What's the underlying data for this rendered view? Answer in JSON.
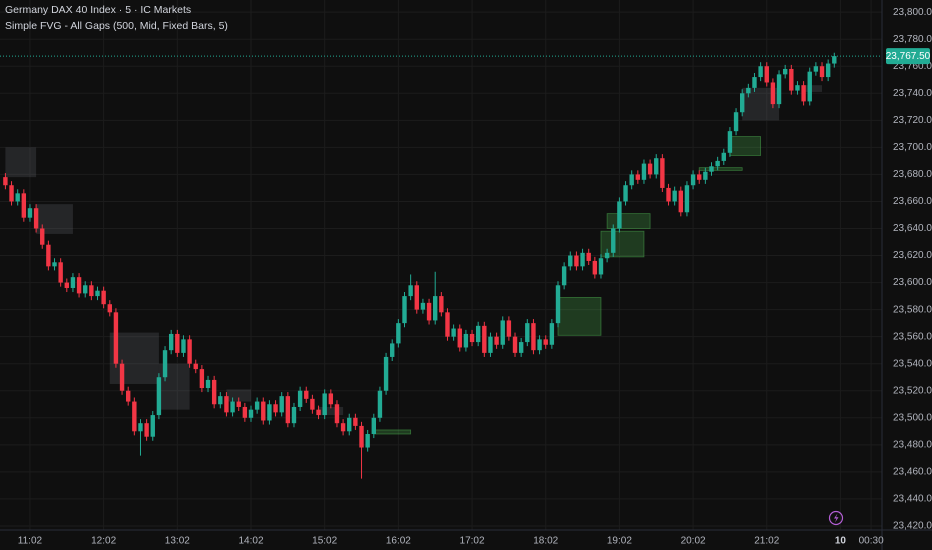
{
  "chart_data": {
    "type": "candlestick",
    "title": "Germany DAX 40 Index · 5 · IC Markets",
    "subtitle": "Simple FVG - All Gaps (500, Mid, Fixed Bars, 5)",
    "up_color": "#22ab94",
    "down_color": "#f23645",
    "grid": true,
    "ylim": [
      23417,
      23809
    ],
    "yticks": [
      {
        "value": 23420,
        "label": "23,420.00"
      },
      {
        "value": 23440,
        "label": "23,440.00"
      },
      {
        "value": 23460,
        "label": "23,460.00"
      },
      {
        "value": 23480,
        "label": "23,480.00"
      },
      {
        "value": 23500,
        "label": "23,500.00"
      },
      {
        "value": 23520,
        "label": "23,520.00"
      },
      {
        "value": 23540,
        "label": "23,540.00"
      },
      {
        "value": 23560,
        "label": "23,560.00"
      },
      {
        "value": 23580,
        "label": "23,580.00"
      },
      {
        "value": 23600,
        "label": "23,600.00"
      },
      {
        "value": 23620,
        "label": "23,620.00"
      },
      {
        "value": 23640,
        "label": "23,640.00"
      },
      {
        "value": 23660,
        "label": "23,660.00"
      },
      {
        "value": 23680,
        "label": "23,680.00"
      },
      {
        "value": 23700,
        "label": "23,700.00"
      },
      {
        "value": 23720,
        "label": "23,720.00"
      },
      {
        "value": 23740,
        "label": "23,740.00"
      },
      {
        "value": 23760,
        "label": "23,760.00"
      },
      {
        "value": 23780,
        "label": "23,780.00"
      },
      {
        "value": 23800,
        "label": "23,800.00"
      }
    ],
    "last_label": "23,767.50",
    "categories": [
      null,
      null,
      null,
      null,
      "11:02",
      null,
      null,
      null,
      null,
      null,
      null,
      null,
      null,
      null,
      null,
      null,
      "12:02",
      null,
      null,
      null,
      null,
      null,
      null,
      null,
      null,
      null,
      null,
      null,
      "13:02",
      null,
      null,
      null,
      null,
      null,
      null,
      null,
      null,
      null,
      null,
      null,
      "14:02",
      null,
      null,
      null,
      null,
      null,
      null,
      null,
      null,
      null,
      null,
      null,
      "15:02",
      null,
      null,
      null,
      null,
      null,
      null,
      null,
      null,
      null,
      null,
      null,
      "16:02",
      null,
      null,
      null,
      null,
      null,
      null,
      null,
      null,
      null,
      null,
      null,
      "17:02",
      null,
      null,
      null,
      null,
      null,
      null,
      null,
      null,
      null,
      null,
      null,
      "18:02",
      null,
      null,
      null,
      null,
      null,
      null,
      null,
      null,
      null,
      null,
      null,
      "19:02",
      null,
      null,
      null,
      null,
      null,
      null,
      null,
      null,
      null,
      null,
      null,
      "20:02",
      null,
      null,
      null,
      null,
      null,
      null,
      null,
      null,
      null,
      null,
      null,
      "21:02",
      null,
      null,
      null,
      null,
      null,
      null,
      null,
      null,
      null,
      null,
      null,
      "10",
      null,
      null,
      null,
      null,
      "00:30"
    ],
    "open": [
      23678,
      23672,
      23660,
      23666,
      23648,
      23655,
      23640,
      23628,
      23612,
      23615,
      23600,
      23596,
      23604,
      23592,
      23598,
      23590,
      23594,
      23584,
      23578,
      23540,
      23520,
      23512,
      23490,
      23496,
      23486,
      23502,
      23530,
      23550,
      23562,
      23548,
      23558,
      23540,
      23536,
      23522,
      23528,
      23510,
      23516,
      23504,
      23512,
      23508,
      23500,
      23506,
      23512,
      23498,
      23510,
      23504,
      23516,
      23496,
      23508,
      23520,
      23514,
      23506,
      23502,
      23518,
      23510,
      23496,
      23490,
      23500,
      23494,
      23478,
      23488,
      23500,
      23520,
      23545,
      23555,
      23570,
      23590,
      23598,
      23580,
      23585,
      23572,
      23590,
      23578,
      23560,
      23566,
      23552,
      23562,
      23556,
      23568,
      23548,
      23560,
      23554,
      23572,
      23560,
      23548,
      23556,
      23570,
      23550,
      23558,
      23554,
      23570,
      23598,
      23612,
      23620,
      23612,
      23622,
      23616,
      23606,
      23618,
      23622,
      23640,
      23660,
      23672,
      23680,
      23676,
      23688,
      23680,
      23692,
      23670,
      23660,
      23668,
      23652,
      23672,
      23680,
      23676,
      23682,
      23686,
      23690,
      23696,
      23712,
      23726,
      23740,
      23744,
      23752,
      23760,
      23748,
      23732,
      23754,
      23758,
      23742,
      23746,
      23734,
      23756,
      23760,
      23752,
      23762,
      null,
      null,
      null,
      null,
      null,
      null
    ],
    "high": [
      23681,
      23675,
      23669,
      23669,
      23658,
      23658,
      23643,
      23631,
      23618,
      23618,
      23603,
      23607,
      23607,
      23601,
      23601,
      23597,
      23597,
      23587,
      23581,
      23543,
      23523,
      23515,
      23499,
      23499,
      23505,
      23533,
      23553,
      23565,
      23565,
      23561,
      23561,
      23543,
      23539,
      23531,
      23531,
      23519,
      23519,
      23515,
      23515,
      23511,
      23509,
      23515,
      23515,
      23513,
      23513,
      23519,
      23519,
      23511,
      23523,
      23523,
      23517,
      23509,
      23521,
      23521,
      23513,
      23499,
      23503,
      23503,
      23497,
      23491,
      23503,
      23523,
      23548,
      23558,
      23573,
      23593,
      23606,
      23601,
      23588,
      23588,
      23608,
      23593,
      23581,
      23569,
      23569,
      23565,
      23565,
      23571,
      23571,
      23563,
      23563,
      23575,
      23575,
      23563,
      23559,
      23573,
      23573,
      23561,
      23561,
      23573,
      23601,
      23615,
      23623,
      23623,
      23625,
      23625,
      23619,
      23621,
      23625,
      23643,
      23663,
      23675,
      23683,
      23683,
      23691,
      23691,
      23695,
      23695,
      23673,
      23671,
      23671,
      23675,
      23683,
      23683,
      23685,
      23689,
      23693,
      23699,
      23715,
      23729,
      23743,
      23747,
      23755,
      23763,
      23763,
      23751,
      23757,
      23761,
      23761,
      23749,
      23749,
      23759,
      23763,
      23763,
      23765,
      23770,
      null,
      null,
      null,
      null,
      null,
      null
    ],
    "low": [
      23669,
      23657,
      23657,
      23645,
      23645,
      23637,
      23625,
      23609,
      23609,
      23597,
      23593,
      23593,
      23589,
      23589,
      23587,
      23587,
      23581,
      23575,
      23537,
      23517,
      23509,
      23487,
      23472,
      23483,
      23483,
      23499,
      23527,
      23547,
      23545,
      23545,
      23537,
      23533,
      23519,
      23519,
      23507,
      23507,
      23501,
      23501,
      23505,
      23497,
      23497,
      23503,
      23495,
      23495,
      23501,
      23501,
      23493,
      23493,
      23505,
      23511,
      23503,
      23499,
      23499,
      23507,
      23493,
      23487,
      23487,
      23491,
      23455,
      23475,
      23485,
      23497,
      23517,
      23542,
      23552,
      23567,
      23587,
      23577,
      23577,
      23569,
      23569,
      23575,
      23557,
      23557,
      23549,
      23549,
      23553,
      23553,
      23545,
      23545,
      23551,
      23551,
      23557,
      23545,
      23545,
      23553,
      23547,
      23547,
      23551,
      23551,
      23567,
      23595,
      23609,
      23609,
      23609,
      23613,
      23603,
      23603,
      23615,
      23619,
      23637,
      23657,
      23669,
      23673,
      23673,
      23677,
      23677,
      23667,
      23657,
      23657,
      23649,
      23649,
      23669,
      23673,
      23673,
      23679,
      23683,
      23687,
      23693,
      23709,
      23723,
      23737,
      23741,
      23749,
      23745,
      23729,
      23729,
      23751,
      23739,
      23739,
      23731,
      23731,
      23753,
      23749,
      23749,
      23759,
      null,
      null,
      null,
      null,
      null,
      null
    ],
    "close": [
      23672,
      23660,
      23666,
      23648,
      23655,
      23640,
      23628,
      23612,
      23615,
      23600,
      23596,
      23604,
      23592,
      23598,
      23590,
      23594,
      23584,
      23578,
      23540,
      23520,
      23512,
      23490,
      23496,
      23486,
      23502,
      23530,
      23550,
      23562,
      23548,
      23558,
      23540,
      23536,
      23522,
      23528,
      23510,
      23516,
      23504,
      23512,
      23508,
      23500,
      23506,
      23512,
      23498,
      23510,
      23504,
      23516,
      23496,
      23508,
      23520,
      23514,
      23506,
      23502,
      23518,
      23510,
      23496,
      23490,
      23500,
      23494,
      23478,
      23488,
      23500,
      23520,
      23545,
      23555,
      23570,
      23590,
      23598,
      23580,
      23585,
      23572,
      23590,
      23578,
      23560,
      23566,
      23552,
      23562,
      23556,
      23568,
      23548,
      23560,
      23554,
      23572,
      23560,
      23548,
      23556,
      23570,
      23550,
      23558,
      23554,
      23570,
      23598,
      23612,
      23620,
      23612,
      23622,
      23616,
      23606,
      23618,
      23622,
      23640,
      23660,
      23672,
      23680,
      23676,
      23688,
      23680,
      23692,
      23670,
      23660,
      23668,
      23652,
      23672,
      23680,
      23676,
      23682,
      23686,
      23690,
      23696,
      23712,
      23726,
      23740,
      23744,
      23752,
      23760,
      23748,
      23732,
      23754,
      23758,
      23742,
      23746,
      23734,
      23756,
      23760,
      23752,
      23762,
      23767.5,
      null,
      null,
      null,
      null,
      null,
      null
    ],
    "gaps": [
      {
        "start": 0,
        "end": 5,
        "top": 23700,
        "bottom": 23678,
        "direction": "bear"
      },
      {
        "start": 5,
        "end": 11,
        "top": 23658,
        "bottom": 23636,
        "direction": "bear"
      },
      {
        "start": 17,
        "end": 25,
        "top": 23563,
        "bottom": 23525,
        "direction": "bear"
      },
      {
        "start": 25,
        "end": 30,
        "top": 23540,
        "bottom": 23506,
        "direction": "bear"
      },
      {
        "start": 36,
        "end": 40,
        "top": 23521,
        "bottom": 23512,
        "direction": "bear"
      },
      {
        "start": 51,
        "end": 55,
        "top": 23508,
        "bottom": 23502,
        "direction": "bear"
      },
      {
        "start": 60,
        "end": 66,
        "top": 23491,
        "bottom": 23488,
        "direction": "bull"
      },
      {
        "start": 90,
        "end": 97,
        "top": 23589,
        "bottom": 23561,
        "direction": "bull"
      },
      {
        "start": 97,
        "end": 104,
        "top": 23638,
        "bottom": 23619,
        "direction": "bull"
      },
      {
        "start": 98,
        "end": 105,
        "top": 23651,
        "bottom": 23640,
        "direction": "bull"
      },
      {
        "start": 113,
        "end": 120,
        "top": 23685,
        "bottom": 23683,
        "direction": "bull"
      },
      {
        "start": 118,
        "end": 123,
        "top": 23708,
        "bottom": 23694,
        "direction": "bull"
      },
      {
        "start": 120,
        "end": 126,
        "top": 23744,
        "bottom": 23720,
        "direction": "bear"
      },
      {
        "start": 130,
        "end": 133,
        "top": 23746,
        "bottom": 23741,
        "direction": "bear"
      }
    ]
  }
}
